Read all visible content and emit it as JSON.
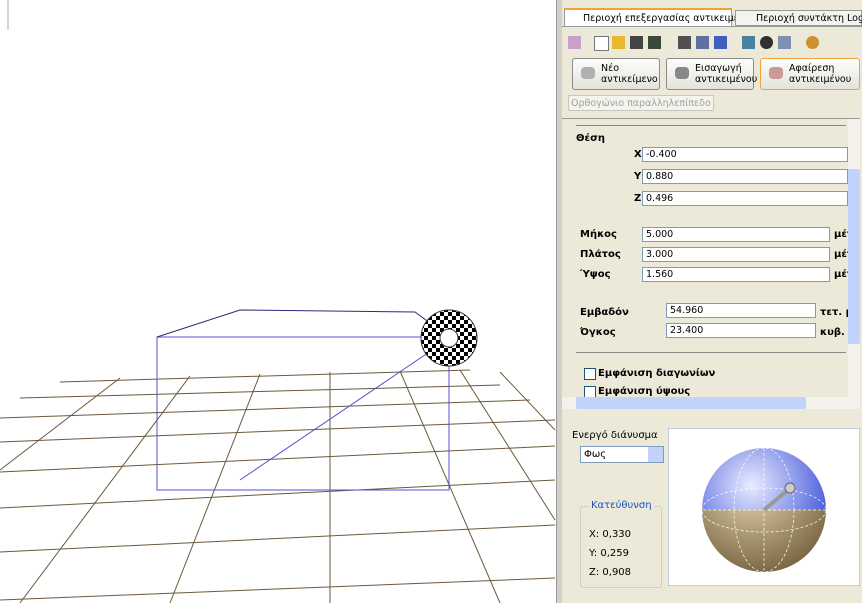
{
  "tabs": [
    "Περιοχή επεξεργασίας αντικειμένων",
    "Περιοχή συντάκτη Logo"
  ],
  "object_buttons": [
    "Νέο αντικείμενο",
    "Εισαγωγή αντικειμένου",
    "Αφαίρεση αντικειμένου"
  ],
  "object_type": "Ορθογώνιο παραλληλεπίπεδο",
  "properties": {
    "position_label": "Θέση",
    "position": [
      {
        "axis": "X",
        "value": "-0.400"
      },
      {
        "axis": "Y",
        "value": "0.880"
      },
      {
        "axis": "Z",
        "value": "0.496"
      }
    ],
    "dimensions": [
      {
        "label": "Μήκος",
        "value": "5.000",
        "unit": "μέτ"
      },
      {
        "label": "Πλάτος",
        "value": "3.000",
        "unit": "μέτ"
      },
      {
        "label": "Ύψος",
        "value": "1.560",
        "unit": "μέτ"
      }
    ],
    "measures": [
      {
        "label": "Εμβαδόν",
        "value": "54.960",
        "unit": "τετ. μ"
      },
      {
        "label": "Όγκος",
        "value": "23.400",
        "unit": "κυβ. μ"
      }
    ]
  },
  "checkboxes": [
    "Εμφάνιση διαγωνίων",
    "Εμφάνιση ύψους"
  ],
  "vector_panel": {
    "label": "Ενεργό διάνυσμα",
    "selected": "Φως",
    "direction_title": "Κατεύθυνση",
    "components": [
      "X: 0,330",
      "Y: 0,259",
      "Z: 0,908"
    ]
  }
}
